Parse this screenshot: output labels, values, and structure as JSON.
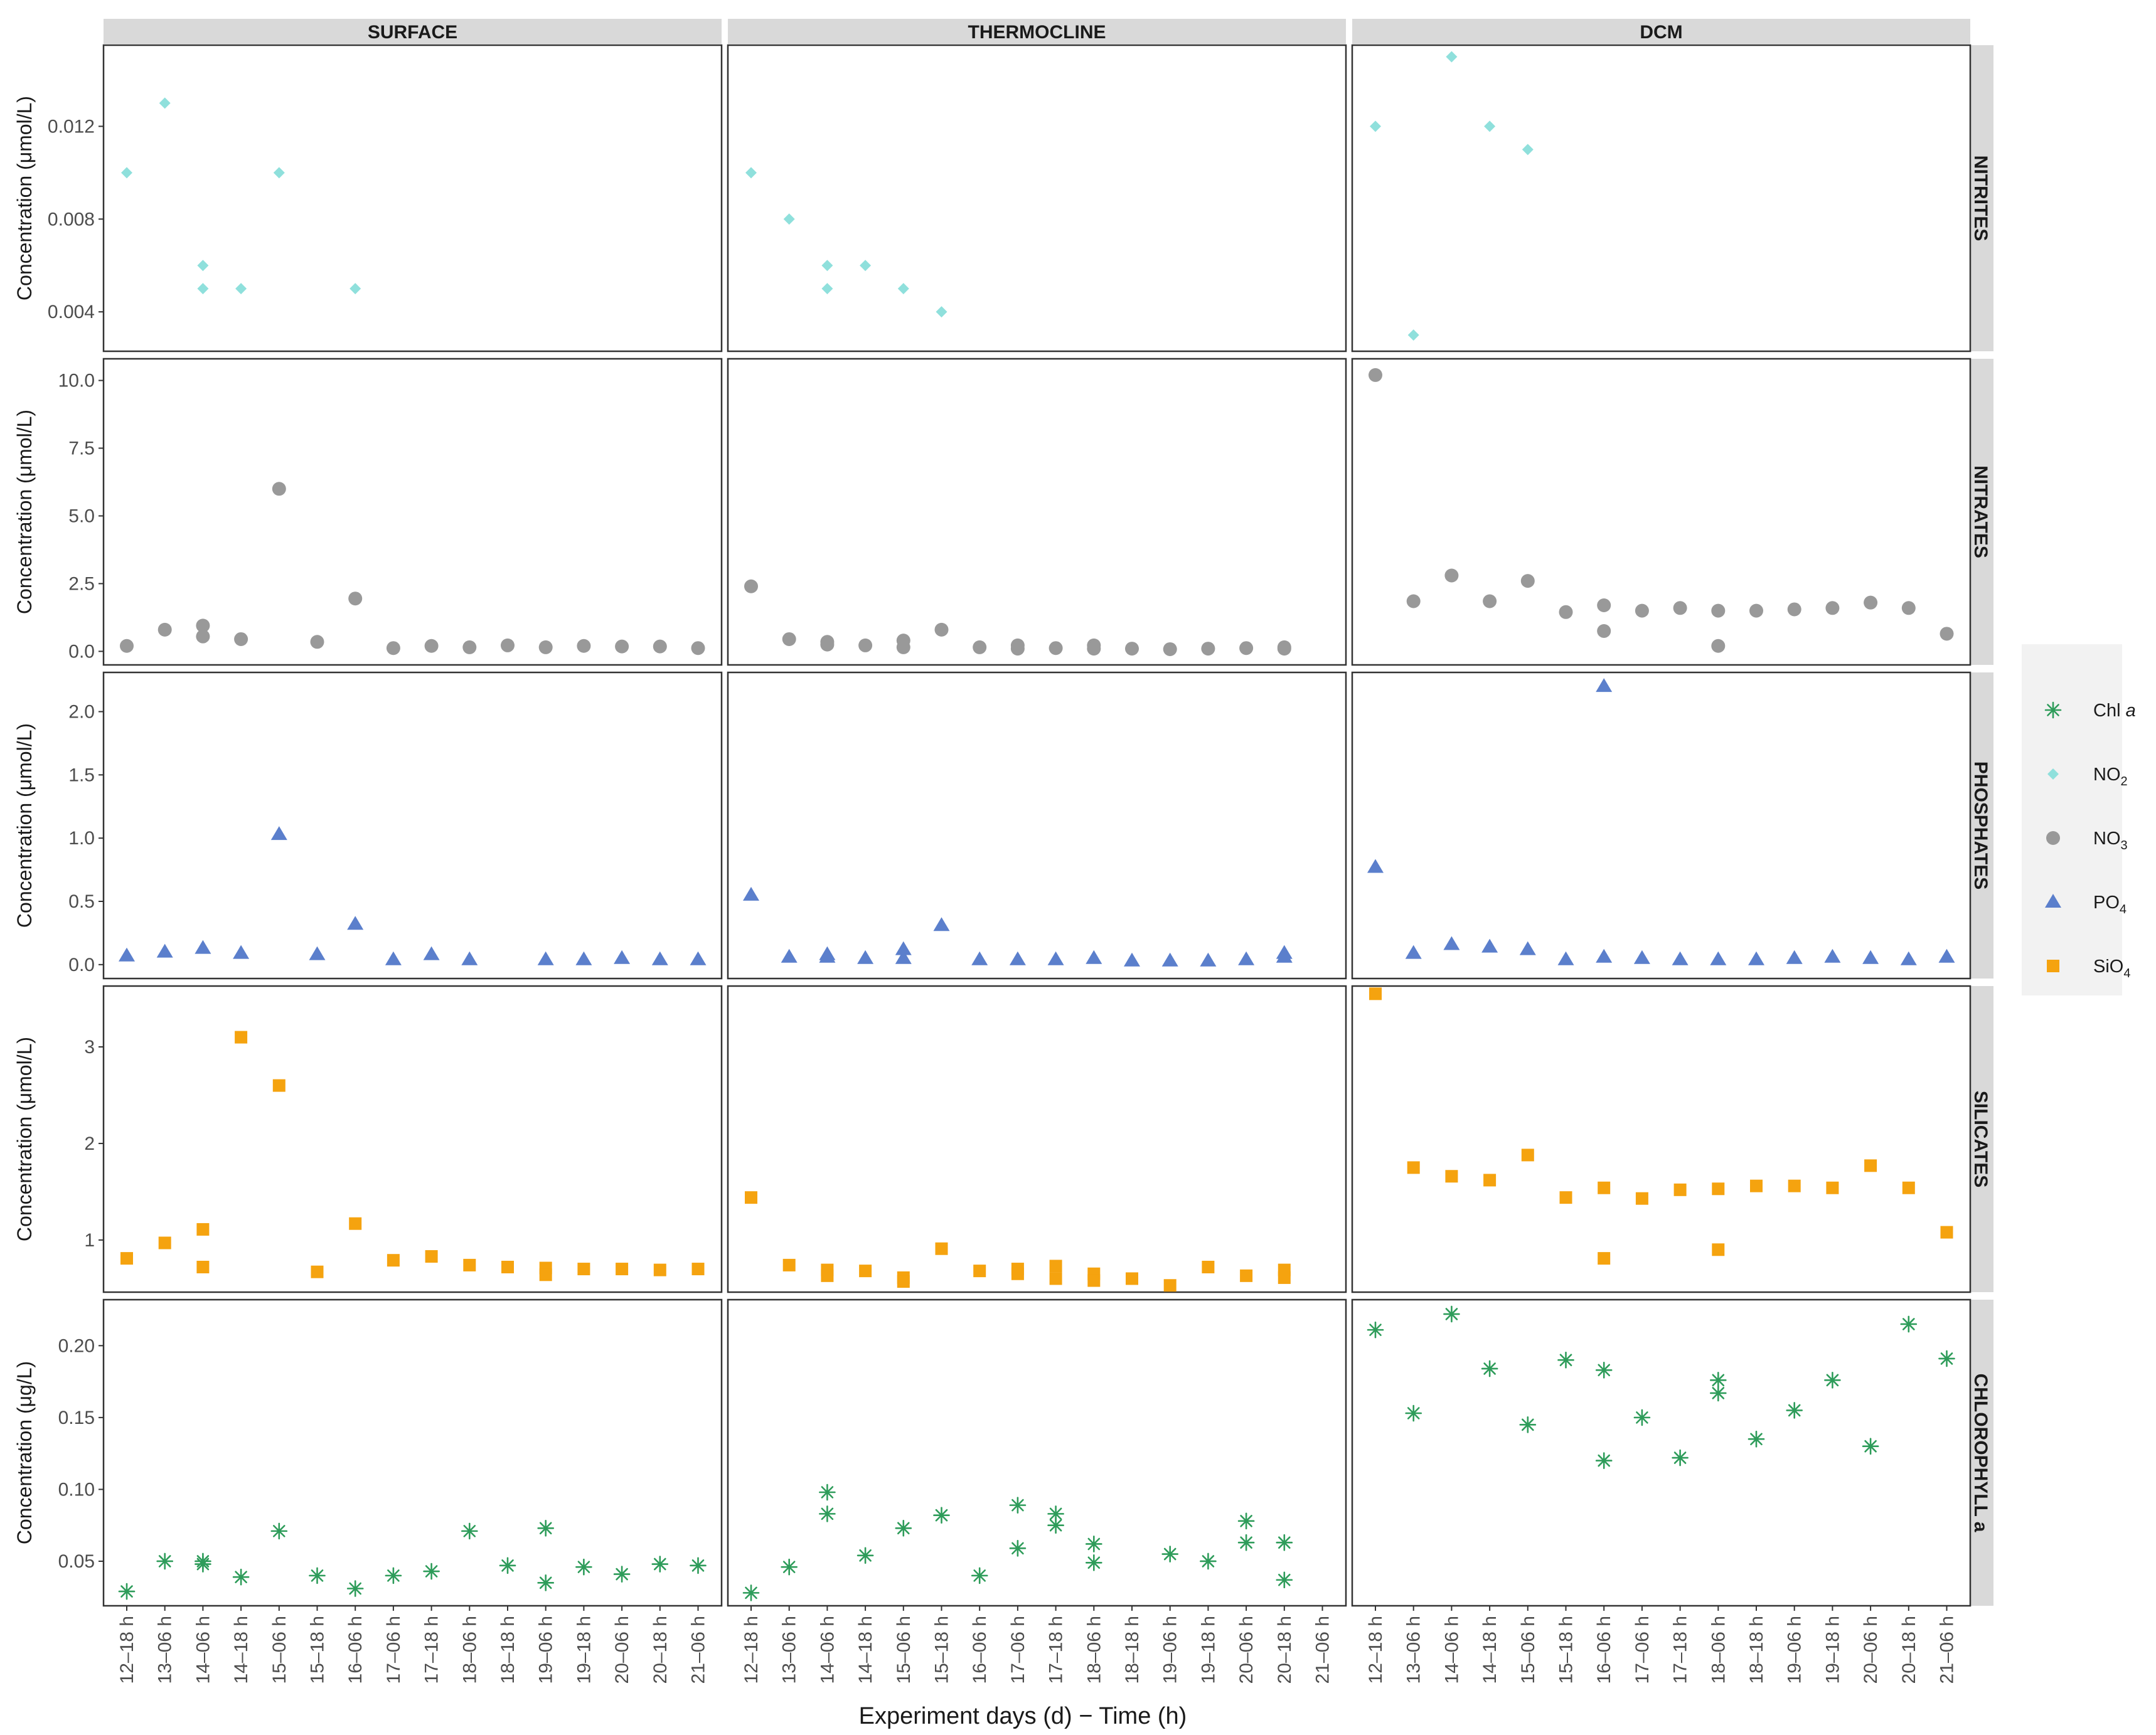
{
  "chart_data": {
    "type": "scatter",
    "x_title": "Experiment days (d) − Time (h)",
    "categories": [
      "12–18 h",
      "13–06 h",
      "14–06 h",
      "14–18 h",
      "15–06 h",
      "15–18 h",
      "16–06 h",
      "17–06 h",
      "17–18 h",
      "18–06 h",
      "18–18 h",
      "19–06 h",
      "19–18 h",
      "20–06 h",
      "20–18 h",
      "21–06 h"
    ],
    "columns": [
      "SURFACE",
      "THERMOCLINE",
      "DCM"
    ],
    "legend": {
      "placement": "right",
      "entries": [
        {
          "key": "chl",
          "label": "Chl ",
          "italic": "a",
          "sub": "",
          "color": "#2e9c5a",
          "shape": "asterisk"
        },
        {
          "key": "no2",
          "label": "NO",
          "italic": "",
          "sub": "2",
          "color": "#8fe0dc",
          "shape": "diamond"
        },
        {
          "key": "no3",
          "label": "NO",
          "italic": "",
          "sub": "3",
          "color": "#999999",
          "shape": "circle"
        },
        {
          "key": "po4",
          "label": "PO",
          "italic": "",
          "sub": "4",
          "color": "#5b7fcc",
          "shape": "triangle"
        },
        {
          "key": "sio4",
          "label": "SiO",
          "italic": "",
          "sub": "4",
          "color": "#f5a30f",
          "shape": "square"
        }
      ]
    },
    "rows": [
      {
        "name": "NITRITES",
        "ylabel": "Concentration (μmol/L)",
        "series": "no2",
        "ylim": [
          0.0023,
          0.0155
        ],
        "ticks": [
          0.004,
          0.008,
          0.012
        ],
        "tick_labels": [
          "0.004",
          "0.008",
          "0.012"
        ],
        "points": [
          [
            [
              0,
              0.01
            ],
            [
              1,
              0.013
            ],
            [
              2,
              0.006
            ],
            [
              2,
              0.005
            ],
            [
              3,
              0.005
            ],
            [
              4,
              0.01
            ],
            [
              6,
              0.005
            ]
          ],
          [
            [
              0,
              0.01
            ],
            [
              1,
              0.008
            ],
            [
              2,
              0.006
            ],
            [
              2,
              0.005
            ],
            [
              3,
              0.006
            ],
            [
              4,
              0.005
            ],
            [
              5,
              0.004
            ]
          ],
          [
            [
              0,
              0.012
            ],
            [
              1,
              0.003
            ],
            [
              2,
              0.015
            ],
            [
              3,
              0.012
            ],
            [
              4,
              0.011
            ]
          ]
        ]
      },
      {
        "name": "NITRATES",
        "ylabel": "Concentration (μmol/L)",
        "series": "no3",
        "ylim": [
          -0.5,
          10.8
        ],
        "ticks": [
          0,
          2.5,
          5,
          7.5,
          10
        ],
        "tick_labels": [
          "0.0",
          "2.5",
          "5.0",
          "7.5",
          "10.0"
        ],
        "points": [
          [
            [
              0,
              0.2
            ],
            [
              1,
              0.8
            ],
            [
              2,
              0.95
            ],
            [
              2,
              0.55
            ],
            [
              3,
              0.45
            ],
            [
              4,
              6.0
            ],
            [
              5,
              0.35
            ],
            [
              6,
              1.95
            ],
            [
              7,
              0.12
            ],
            [
              8,
              0.2
            ],
            [
              9,
              0.15
            ],
            [
              10,
              0.22
            ],
            [
              11,
              0.15
            ],
            [
              12,
              0.2
            ],
            [
              13,
              0.18
            ],
            [
              14,
              0.18
            ],
            [
              15,
              0.12
            ]
          ],
          [
            [
              0,
              2.4
            ],
            [
              1,
              0.45
            ],
            [
              2,
              0.35
            ],
            [
              2,
              0.25
            ],
            [
              3,
              0.22
            ],
            [
              4,
              0.4
            ],
            [
              4,
              0.15
            ],
            [
              5,
              0.8
            ],
            [
              6,
              0.15
            ],
            [
              7,
              0.22
            ],
            [
              7,
              0.1
            ],
            [
              8,
              0.12
            ],
            [
              9,
              0.22
            ],
            [
              9,
              0.1
            ],
            [
              10,
              0.1
            ],
            [
              11,
              0.08
            ],
            [
              12,
              0.1
            ],
            [
              13,
              0.12
            ],
            [
              14,
              0.15
            ],
            [
              14,
              0.1
            ]
          ],
          [
            [
              0,
              10.2
            ],
            [
              1,
              1.85
            ],
            [
              2,
              2.8
            ],
            [
              3,
              1.85
            ],
            [
              4,
              2.6
            ],
            [
              5,
              1.45
            ],
            [
              6,
              1.7
            ],
            [
              6,
              0.75
            ],
            [
              7,
              1.5
            ],
            [
              8,
              1.6
            ],
            [
              9,
              1.5
            ],
            [
              9,
              0.2
            ],
            [
              10,
              1.5
            ],
            [
              11,
              1.55
            ],
            [
              12,
              1.6
            ],
            [
              13,
              1.8
            ],
            [
              14,
              1.6
            ],
            [
              15,
              0.65
            ]
          ]
        ]
      },
      {
        "name": "PHOSPHATES",
        "ylabel": "Concentration (μmol/L)",
        "series": "po4",
        "ylim": [
          -0.11,
          2.31
        ],
        "ticks": [
          0,
          0.5,
          1,
          1.5,
          2
        ],
        "tick_labels": [
          "0.0",
          "0.5",
          "1.0",
          "1.5",
          "2.0"
        ],
        "points": [
          [
            [
              0,
              0.07
            ],
            [
              1,
              0.1
            ],
            [
              2,
              0.13
            ],
            [
              3,
              0.09
            ],
            [
              4,
              1.03
            ],
            [
              5,
              0.08
            ],
            [
              6,
              0.32
            ],
            [
              7,
              0.04
            ],
            [
              8,
              0.08
            ],
            [
              9,
              0.04
            ],
            [
              11,
              0.04
            ],
            [
              12,
              0.04
            ],
            [
              13,
              0.05
            ],
            [
              14,
              0.04
            ],
            [
              15,
              0.04
            ]
          ],
          [
            [
              0,
              0.55
            ],
            [
              1,
              0.06
            ],
            [
              2,
              0.08
            ],
            [
              2,
              0.06
            ],
            [
              3,
              0.05
            ],
            [
              4,
              0.12
            ],
            [
              4,
              0.05
            ],
            [
              5,
              0.31
            ],
            [
              6,
              0.04
            ],
            [
              7,
              0.04
            ],
            [
              8,
              0.04
            ],
            [
              9,
              0.05
            ],
            [
              10,
              0.03
            ],
            [
              11,
              0.03
            ],
            [
              12,
              0.03
            ],
            [
              13,
              0.04
            ],
            [
              14,
              0.09
            ],
            [
              14,
              0.06
            ]
          ],
          [
            [
              0,
              0.77
            ],
            [
              1,
              0.09
            ],
            [
              2,
              0.16
            ],
            [
              3,
              0.14
            ],
            [
              4,
              0.12
            ],
            [
              5,
              0.04
            ],
            [
              6,
              2.2
            ],
            [
              6,
              0.06
            ],
            [
              7,
              0.05
            ],
            [
              8,
              0.04
            ],
            [
              9,
              0.04
            ],
            [
              10,
              0.04
            ],
            [
              11,
              0.05
            ],
            [
              12,
              0.06
            ],
            [
              13,
              0.05
            ],
            [
              14,
              0.04
            ],
            [
              15,
              0.06
            ]
          ]
        ]
      },
      {
        "name": "SILICATES",
        "ylabel": "Concentration (μmol/L)",
        "series": "sio4",
        "ylim": [
          0.46,
          3.63
        ],
        "ticks": [
          1,
          2,
          3
        ],
        "tick_labels": [
          "1",
          "2",
          "3"
        ],
        "points": [
          [
            [
              0,
              0.81
            ],
            [
              1,
              0.97
            ],
            [
              2,
              1.11
            ],
            [
              2,
              0.72
            ],
            [
              3,
              3.1
            ],
            [
              4,
              2.6
            ],
            [
              5,
              0.67
            ],
            [
              6,
              1.17
            ],
            [
              7,
              0.79
            ],
            [
              8,
              0.83
            ],
            [
              9,
              0.74
            ],
            [
              10,
              0.72
            ],
            [
              11,
              0.71
            ],
            [
              11,
              0.64
            ],
            [
              12,
              0.7
            ],
            [
              13,
              0.7
            ],
            [
              14,
              0.69
            ],
            [
              15,
              0.7
            ]
          ],
          [
            [
              0,
              1.44
            ],
            [
              1,
              0.74
            ],
            [
              2,
              0.69
            ],
            [
              2,
              0.63
            ],
            [
              3,
              0.68
            ],
            [
              4,
              0.61
            ],
            [
              4,
              0.57
            ],
            [
              5,
              0.91
            ],
            [
              6,
              0.68
            ],
            [
              7,
              0.7
            ],
            [
              7,
              0.65
            ],
            [
              8,
              0.73
            ],
            [
              8,
              0.6
            ],
            [
              9,
              0.65
            ],
            [
              9,
              0.58
            ],
            [
              10,
              0.6
            ],
            [
              11,
              0.53
            ],
            [
              12,
              0.72
            ],
            [
              13,
              0.63
            ],
            [
              14,
              0.69
            ],
            [
              14,
              0.61
            ]
          ],
          [
            [
              0,
              3.55
            ],
            [
              1,
              1.75
            ],
            [
              2,
              1.66
            ],
            [
              3,
              1.62
            ],
            [
              4,
              1.88
            ],
            [
              5,
              1.44
            ],
            [
              6,
              1.54
            ],
            [
              6,
              0.81
            ],
            [
              7,
              1.43
            ],
            [
              8,
              1.52
            ],
            [
              9,
              1.53
            ],
            [
              9,
              0.9
            ],
            [
              10,
              1.56
            ],
            [
              11,
              1.56
            ],
            [
              12,
              1.54
            ],
            [
              13,
              1.77
            ],
            [
              14,
              1.54
            ],
            [
              15,
              1.08
            ]
          ]
        ]
      },
      {
        "name": "CHLOROPHYLL a",
        "ylabel": "Concentration (μg/L)",
        "series": "chl",
        "ylim": [
          0.019,
          0.232
        ],
        "ticks": [
          0.05,
          0.1,
          0.15,
          0.2
        ],
        "tick_labels": [
          "0.05",
          "0.10",
          "0.15",
          "0.20"
        ],
        "points": [
          [
            [
              0,
              0.029
            ],
            [
              1,
              0.05
            ],
            [
              2,
              0.05
            ],
            [
              2,
              0.048
            ],
            [
              3,
              0.039
            ],
            [
              4,
              0.071
            ],
            [
              5,
              0.04
            ],
            [
              6,
              0.031
            ],
            [
              7,
              0.04
            ],
            [
              8,
              0.043
            ],
            [
              9,
              0.071
            ],
            [
              10,
              0.047
            ],
            [
              11,
              0.073
            ],
            [
              11,
              0.035
            ],
            [
              12,
              0.046
            ],
            [
              13,
              0.041
            ],
            [
              14,
              0.048
            ],
            [
              15,
              0.047
            ]
          ],
          [
            [
              0,
              0.028
            ],
            [
              1,
              0.046
            ],
            [
              2,
              0.098
            ],
            [
              2,
              0.083
            ],
            [
              3,
              0.054
            ],
            [
              4,
              0.073
            ],
            [
              5,
              0.082
            ],
            [
              6,
              0.04
            ],
            [
              7,
              0.089
            ],
            [
              7,
              0.059
            ],
            [
              8,
              0.083
            ],
            [
              8,
              0.075
            ],
            [
              9,
              0.062
            ],
            [
              9,
              0.049
            ],
            [
              11,
              0.055
            ],
            [
              12,
              0.05
            ],
            [
              13,
              0.078
            ],
            [
              13,
              0.063
            ],
            [
              14,
              0.063
            ],
            [
              14,
              0.037
            ]
          ],
          [
            [
              0,
              0.211
            ],
            [
              1,
              0.153
            ],
            [
              2,
              0.222
            ],
            [
              3,
              0.184
            ],
            [
              4,
              0.145
            ],
            [
              5,
              0.19
            ],
            [
              6,
              0.183
            ],
            [
              6,
              0.12
            ],
            [
              7,
              0.15
            ],
            [
              8,
              0.122
            ],
            [
              9,
              0.176
            ],
            [
              9,
              0.167
            ],
            [
              10,
              0.135
            ],
            [
              11,
              0.155
            ],
            [
              12,
              0.176
            ],
            [
              13,
              0.13
            ],
            [
              14,
              0.215
            ],
            [
              15,
              0.191
            ]
          ]
        ]
      }
    ]
  }
}
